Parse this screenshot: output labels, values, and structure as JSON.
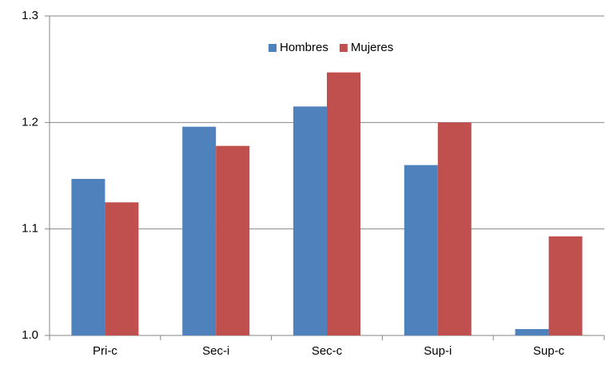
{
  "chart_data": {
    "type": "bar",
    "categories": [
      "Pri-c",
      "Sec-i",
      "Sec-c",
      "Sup-i",
      "Sup-c"
    ],
    "series": [
      {
        "name": "Hombres",
        "color": "#4f81bd",
        "values": [
          1.147,
          1.196,
          1.215,
          1.16,
          1.006
        ]
      },
      {
        "name": "Mujeres",
        "color": "#c0504d",
        "values": [
          1.125,
          1.178,
          1.247,
          1.2,
          1.093
        ]
      }
    ],
    "ylim": [
      1.0,
      1.3
    ],
    "yticks": [
      {
        "value": 1,
        "label": "1.0"
      },
      1.1,
      1.2,
      1.3
    ],
    "grid": true,
    "legend": "top"
  }
}
